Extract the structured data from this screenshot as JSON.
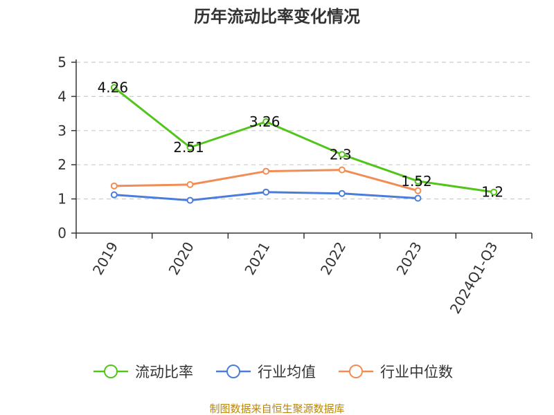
{
  "chart_data": {
    "type": "line",
    "title": "历年流动比率变化情况",
    "categories": [
      "2019",
      "2020",
      "2021",
      "2022",
      "2023",
      "2024Q1-Q3"
    ],
    "ylim": [
      0,
      5
    ],
    "yticks": [
      "0",
      "1",
      "2",
      "3",
      "4",
      "5"
    ],
    "grid": true,
    "legend_position": "bottom",
    "series": [
      {
        "name": "流动比率",
        "color": "#52c41a",
        "values": [
          4.26,
          2.51,
          3.26,
          2.3,
          1.52,
          1.2
        ],
        "labels": [
          "4.26",
          "2.51",
          "3.26",
          "2.3",
          "1.52",
          "1.2"
        ]
      },
      {
        "name": "行业均值",
        "color": "#4a7ddb",
        "values": [
          1.12,
          0.96,
          1.2,
          1.16,
          1.02,
          null
        ]
      },
      {
        "name": "行业中位数",
        "color": "#f28c55",
        "values": [
          1.38,
          1.42,
          1.81,
          1.85,
          1.24,
          null
        ]
      }
    ]
  },
  "source_text": "制图数据来自恒生聚源数据库"
}
